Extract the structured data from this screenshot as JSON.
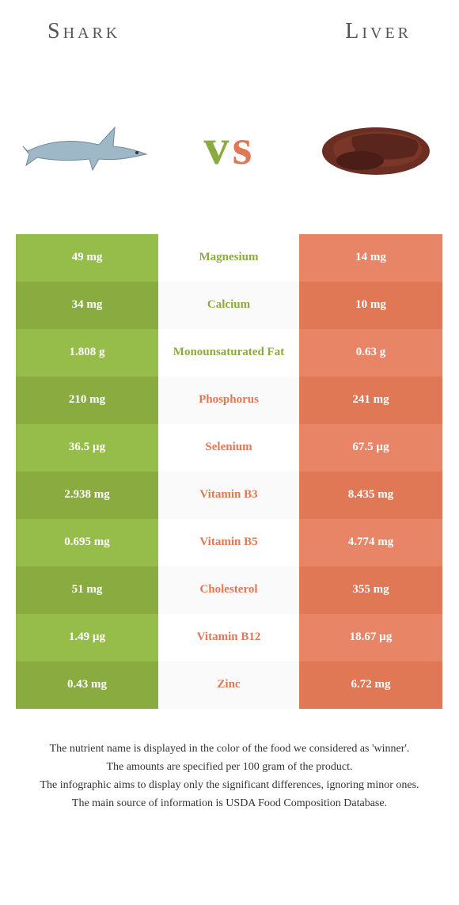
{
  "header": {
    "left": "Shark",
    "right": "Liver"
  },
  "vs": {
    "v": "v",
    "s": "s"
  },
  "colors": {
    "green_odd": "#96bd4a",
    "green_even": "#8aab3f",
    "orange_odd": "#e88566",
    "orange_even": "#e07856",
    "mid_odd": "#ffffff",
    "mid_even": "#fafafa",
    "text_green": "#8aab3f",
    "text_orange": "#e07856"
  },
  "rows": [
    {
      "left": "49 mg",
      "mid": "Magnesium",
      "right": "14 mg",
      "winner": "left"
    },
    {
      "left": "34 mg",
      "mid": "Calcium",
      "right": "10 mg",
      "winner": "left"
    },
    {
      "left": "1.808 g",
      "mid": "Monounsaturated Fat",
      "right": "0.63 g",
      "winner": "left"
    },
    {
      "left": "210 mg",
      "mid": "Phosphorus",
      "right": "241 mg",
      "winner": "right"
    },
    {
      "left": "36.5 µg",
      "mid": "Selenium",
      "right": "67.5 µg",
      "winner": "right"
    },
    {
      "left": "2.938 mg",
      "mid": "Vitamin B3",
      "right": "8.435 mg",
      "winner": "right"
    },
    {
      "left": "0.695 mg",
      "mid": "Vitamin B5",
      "right": "4.774 mg",
      "winner": "right"
    },
    {
      "left": "51 mg",
      "mid": "Cholesterol",
      "right": "355 mg",
      "winner": "right"
    },
    {
      "left": "1.49 µg",
      "mid": "Vitamin B12",
      "right": "18.67 µg",
      "winner": "right"
    },
    {
      "left": "0.43 mg",
      "mid": "Zinc",
      "right": "6.72 mg",
      "winner": "right"
    }
  ],
  "footer": [
    "The nutrient name is displayed in the color of the food we considered as 'winner'.",
    "The amounts are specified per 100 gram of the product.",
    "The infographic aims to display only the significant differences, ignoring minor ones.",
    "The main source of information is USDA Food Composition Database."
  ]
}
